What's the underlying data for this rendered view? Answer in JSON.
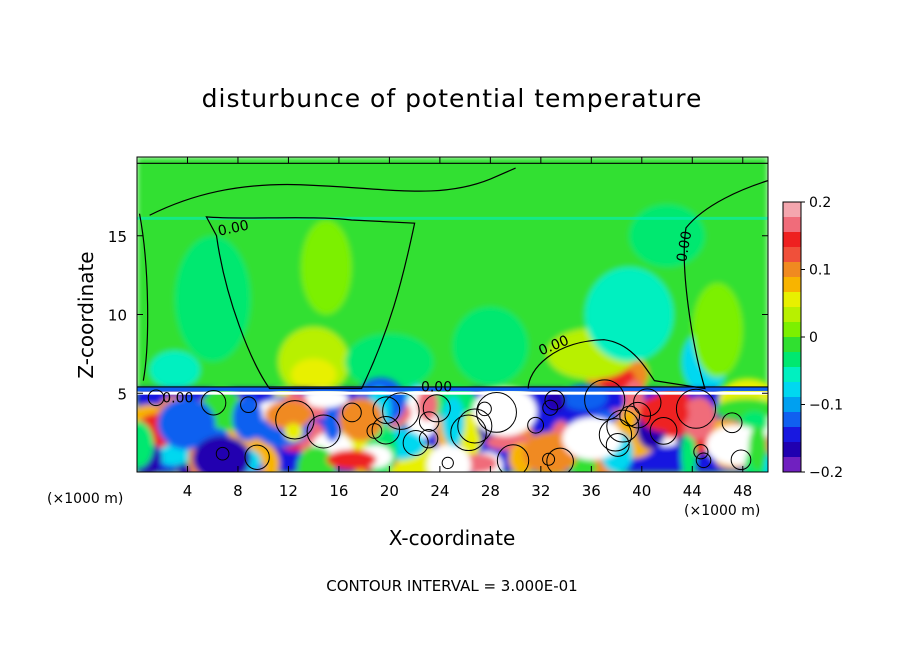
{
  "chart_data": {
    "type": "heatmap",
    "title": "disturbunce of potential temperature",
    "xlabel": "X-coordinate",
    "ylabel": "Z-coordinate",
    "x_unit_label": "(×1000 m)",
    "xlim": [
      0,
      50
    ],
    "ylim": [
      0,
      20
    ],
    "x_ticks": [
      4,
      8,
      12,
      16,
      20,
      24,
      28,
      32,
      36,
      40,
      44,
      48
    ],
    "y_ticks": [
      5,
      10,
      15
    ],
    "colorbar": {
      "range": [
        -0.2,
        0.2
      ],
      "tick_values": [
        0.2,
        0.1,
        0,
        -0.1,
        -0.2
      ],
      "tick_labels": [
        "0.2",
        "0.1",
        "0",
        "−0.1",
        "−0.2"
      ],
      "colors": [
        "#f4a6ae",
        "#f06c7a",
        "#ee2020",
        "#f0503a",
        "#f08a20",
        "#f8b400",
        "#e8f000",
        "#b8f000",
        "#7cf000",
        "#30e030",
        "#00e870",
        "#00f0c0",
        "#00d8f0",
        "#00a0f0",
        "#1060f0",
        "#1818e0",
        "#2000b0",
        "#7020c0"
      ]
    },
    "contour_label": "0.00",
    "footnote": "CONTOUR INTERVAL = 3.000E-01",
    "colors": {
      "upper_field": "#30e030",
      "contour": "#000000"
    }
  }
}
